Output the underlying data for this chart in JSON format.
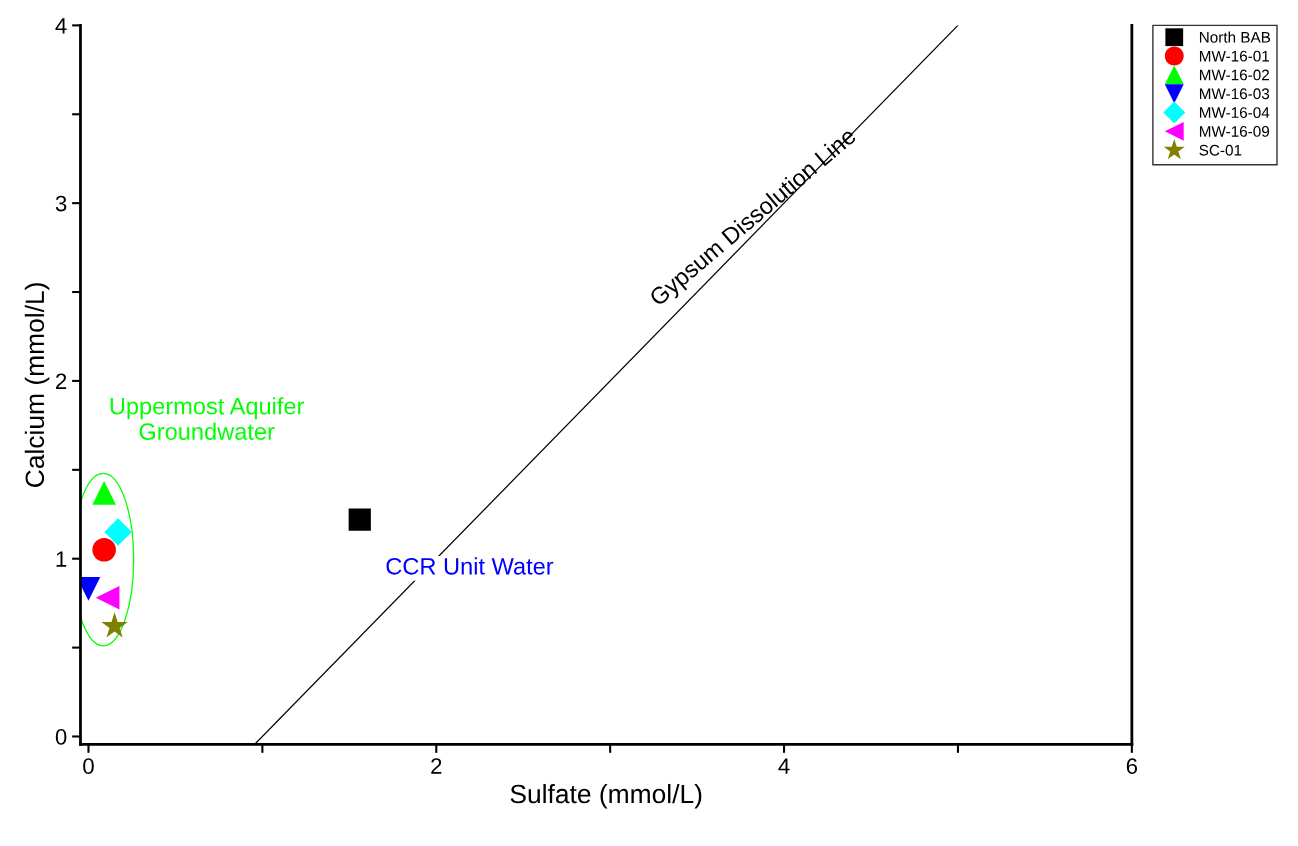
{
  "chart_data": {
    "type": "scatter",
    "xlabel": "Sulfate (mmol/L)",
    "ylabel": "Calcium (mmol/L)",
    "xlim": [
      -0.046,
      6
    ],
    "ylim": [
      -0.045,
      4
    ],
    "xticks": [
      0,
      {
        "value": 1,
        "label": null
      },
      2,
      {
        "value": 3,
        "label": null
      },
      4,
      {
        "value": 5,
        "label": null
      },
      6
    ],
    "yticks": [
      0,
      {
        "value": 0.5,
        "label": null
      },
      1,
      {
        "value": 1.5,
        "label": null
      },
      2,
      {
        "value": 2.5,
        "label": null
      },
      3,
      {
        "value": 3.5,
        "label": null
      },
      4
    ],
    "grid": false,
    "legend": "top right",
    "series": [
      {
        "name": "North BAB",
        "color": "#000000",
        "marker": "square",
        "x": [
          1.56
        ],
        "values": [
          1.22
        ]
      },
      {
        "name": "MW-16-01",
        "color": "#ff0000",
        "marker": "circle",
        "x": [
          0.09
        ],
        "values": [
          1.05
        ]
      },
      {
        "name": "MW-16-02",
        "color": "#00ff00",
        "marker": "triangle",
        "x": [
          0.09
        ],
        "values": [
          1.37
        ]
      },
      {
        "name": "MW-16-03",
        "color": "#0000ff",
        "marker": "triangle_down",
        "x": [
          0.0
        ],
        "values": [
          0.83
        ]
      },
      {
        "name": "MW-16-04",
        "color": "#00ffff",
        "marker": "diamond",
        "x": [
          0.17
        ],
        "values": [
          1.15
        ]
      },
      {
        "name": "MW-16-09",
        "color": "#ff00ff",
        "marker": "triangle_left",
        "x": [
          0.11
        ],
        "values": [
          0.78
        ]
      },
      {
        "name": "SC-01",
        "color": "#808000",
        "marker": "star",
        "x": [
          0.15
        ],
        "values": [
          0.62
        ]
      },
      {
        "name": "Gypsum Dissolution Line",
        "type": "line",
        "color": "#000000",
        "line_style": "solid",
        "x": [
          0.955,
          5.0
        ],
        "values": [
          -0.045,
          4.0
        ]
      }
    ],
    "annotations": [
      "Uppermost Aquifer\nGroundwater",
      "CCR Unit Water"
    ]
  }
}
